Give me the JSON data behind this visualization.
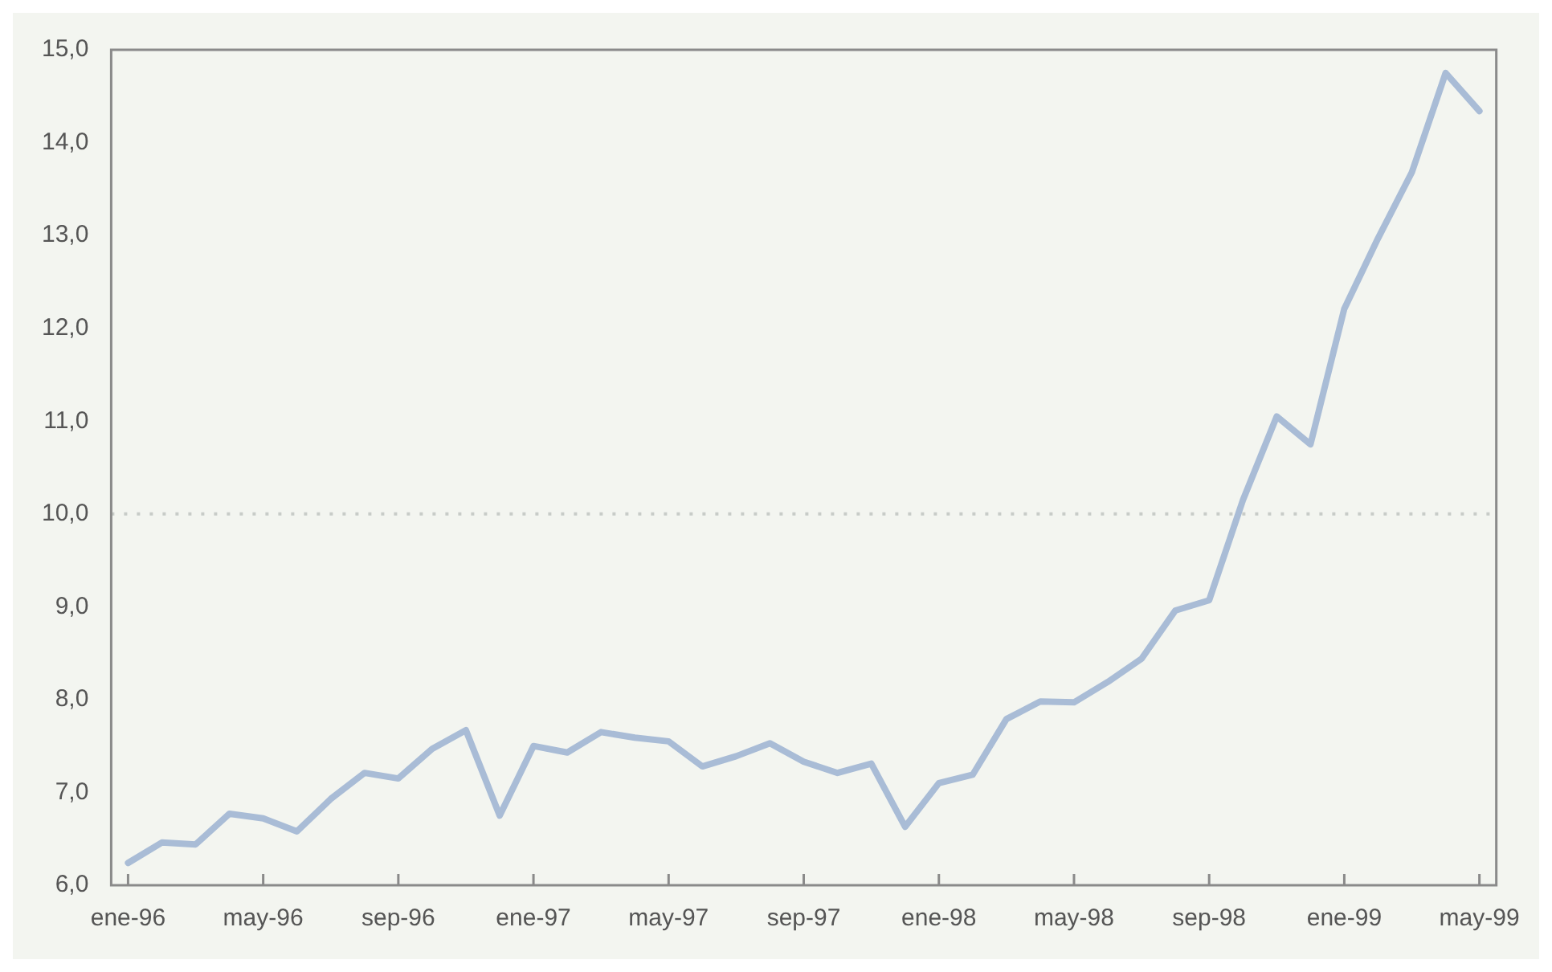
{
  "chart_data": {
    "type": "line",
    "categories": [
      "ene-96",
      null,
      null,
      null,
      "may-96",
      null,
      null,
      null,
      "sep-96",
      null,
      null,
      null,
      "ene-97",
      null,
      null,
      null,
      "may-97",
      null,
      null,
      null,
      "sep-97",
      null,
      null,
      null,
      "ene-98",
      null,
      null,
      null,
      "may-98",
      null,
      null,
      null,
      "sep-98",
      null,
      null,
      null,
      "ene-99",
      null,
      null,
      null,
      "may-99"
    ],
    "series": [
      {
        "color": "#a9bcd6",
        "values": [
          6.24,
          6.46,
          6.44,
          6.77,
          6.72,
          6.58,
          6.93,
          7.21,
          7.15,
          7.47,
          7.67,
          6.75,
          7.5,
          7.43,
          7.65,
          7.59,
          7.55,
          7.28,
          7.39,
          7.53,
          7.33,
          7.21,
          7.31,
          6.63,
          7.1,
          7.19,
          7.79,
          7.98,
          7.97,
          8.19,
          8.44,
          8.96,
          9.07,
          10.15,
          11.05,
          10.75,
          12.21,
          12.97,
          13.68,
          14.75,
          14.34
        ]
      }
    ],
    "ylim": [
      6,
      15
    ],
    "yticks": [
      {
        "value": 6,
        "label": "6,0"
      },
      {
        "value": 7,
        "label": "7,0"
      },
      {
        "value": 8,
        "label": "8,0"
      },
      {
        "value": 9,
        "label": "9,0"
      },
      {
        "value": 10,
        "label": "10,0"
      },
      {
        "value": 11,
        "label": "11,0"
      },
      {
        "value": 12,
        "label": "12,0"
      },
      {
        "value": 13,
        "label": "13,0"
      },
      {
        "value": 14,
        "label": "14,0"
      },
      {
        "value": 15,
        "label": "15,0"
      }
    ],
    "ref_lines": [
      {
        "axis": "y",
        "value": 10,
        "color": "#c8ccc8",
        "line_style": "dotted"
      }
    ],
    "grid": false,
    "legend": false,
    "marker": "none",
    "line_style": "solid"
  }
}
